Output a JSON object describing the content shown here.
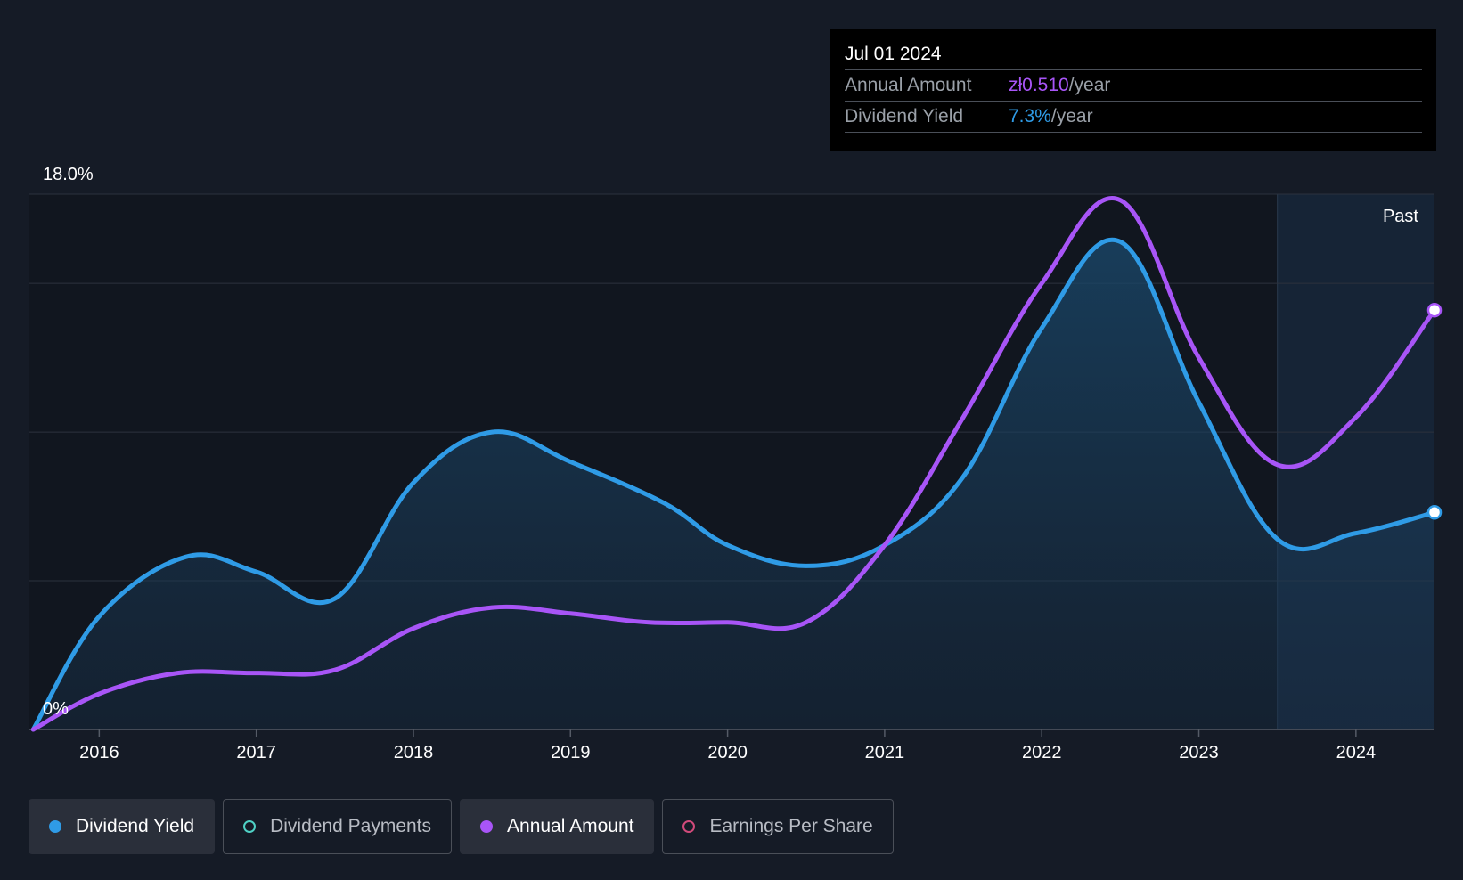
{
  "tooltip": {
    "date": "Jul 01 2024",
    "annual_amount_label": "Annual Amount",
    "annual_amount_value": "zł0.510",
    "annual_amount_unit": "/year",
    "dividend_yield_label": "Dividend Yield",
    "dividend_yield_value": "7.3%",
    "dividend_yield_unit": "/year"
  },
  "past_label": "Past",
  "legend": [
    {
      "label": "Dividend Yield",
      "color": "#2f9be6",
      "filled": true,
      "active": true
    },
    {
      "label": "Dividend Payments",
      "color": "#4fd1c5",
      "filled": false,
      "active": false
    },
    {
      "label": "Annual Amount",
      "color": "#a855f7",
      "filled": true,
      "active": true
    },
    {
      "label": "Earnings Per Share",
      "color": "#d04a7a",
      "filled": false,
      "active": false
    }
  ],
  "chart_data": {
    "type": "line",
    "title": "",
    "xlabel": "",
    "ylabel": "",
    "x_ticks": [
      "2016",
      "2017",
      "2018",
      "2019",
      "2020",
      "2021",
      "2022",
      "2023",
      "2024"
    ],
    "x_range": [
      2015.55,
      2024.5
    ],
    "y_ticks_labels": [
      "18.0%",
      "0%"
    ],
    "ylim": [
      0,
      18
    ],
    "gridlines": [
      0,
      5,
      10,
      15,
      18
    ],
    "past_region_start": 2023.5,
    "series": [
      {
        "name": "Dividend Yield",
        "color": "#2f9be6",
        "area": true,
        "points": [
          [
            2015.58,
            0.0
          ],
          [
            2016.0,
            3.8
          ],
          [
            2016.55,
            5.8
          ],
          [
            2017.0,
            5.3
          ],
          [
            2017.5,
            4.4
          ],
          [
            2018.0,
            8.3
          ],
          [
            2018.5,
            10.0
          ],
          [
            2019.0,
            9.0
          ],
          [
            2019.6,
            7.6
          ],
          [
            2020.0,
            6.2
          ],
          [
            2020.5,
            5.5
          ],
          [
            2021.0,
            6.2
          ],
          [
            2021.5,
            8.5
          ],
          [
            2022.0,
            13.5
          ],
          [
            2022.5,
            16.4
          ],
          [
            2023.0,
            11.0
          ],
          [
            2023.5,
            6.4
          ],
          [
            2024.0,
            6.6
          ],
          [
            2024.5,
            7.3
          ]
        ]
      },
      {
        "name": "Annual Amount",
        "color": "#a855f7",
        "area": false,
        "points": [
          [
            2015.58,
            0.0
          ],
          [
            2016.0,
            1.2
          ],
          [
            2016.5,
            1.9
          ],
          [
            2017.0,
            1.9
          ],
          [
            2017.5,
            2.0
          ],
          [
            2018.0,
            3.4
          ],
          [
            2018.5,
            4.1
          ],
          [
            2019.0,
            3.9
          ],
          [
            2019.5,
            3.6
          ],
          [
            2020.0,
            3.6
          ],
          [
            2020.5,
            3.6
          ],
          [
            2021.0,
            6.2
          ],
          [
            2021.5,
            10.5
          ],
          [
            2022.0,
            15.0
          ],
          [
            2022.5,
            17.8
          ],
          [
            2023.0,
            12.5
          ],
          [
            2023.5,
            8.9
          ],
          [
            2024.0,
            10.5
          ],
          [
            2024.5,
            14.1
          ]
        ]
      }
    ]
  }
}
